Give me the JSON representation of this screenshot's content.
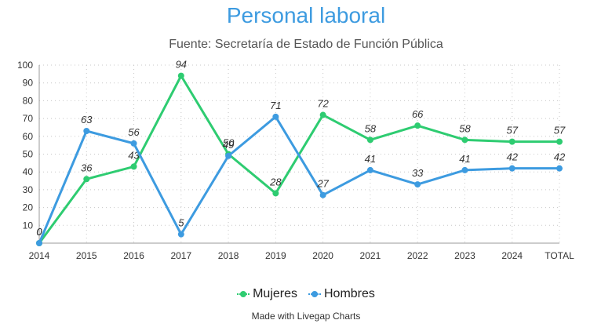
{
  "chart_data": {
    "type": "line",
    "title": "Personal laboral",
    "subtitle": "Fuente: Secretaría de Estado de Función Pública",
    "xlabel": "",
    "ylabel": "",
    "categories": [
      "2014",
      "2015",
      "2016",
      "2017",
      "2018",
      "2019",
      "2020",
      "2021",
      "2022",
      "2023",
      "2024",
      "TOTAL"
    ],
    "ylim": [
      0,
      100
    ],
    "yticks": [
      10,
      20,
      30,
      40,
      50,
      60,
      70,
      80,
      90,
      100
    ],
    "grid": true,
    "legend_position": "bottom",
    "series": [
      {
        "name": "Mujeres",
        "color": "#2ecc71",
        "values": [
          0,
          36,
          43,
          94,
          50,
          28,
          72,
          58,
          66,
          58,
          57,
          57
        ]
      },
      {
        "name": "Hombres",
        "color": "#3d9be0",
        "values": [
          0,
          63,
          56,
          5,
          49,
          71,
          27,
          41,
          33,
          41,
          42,
          42
        ]
      }
    ]
  },
  "footer": {
    "credit": "Made with Livegap Charts"
  }
}
